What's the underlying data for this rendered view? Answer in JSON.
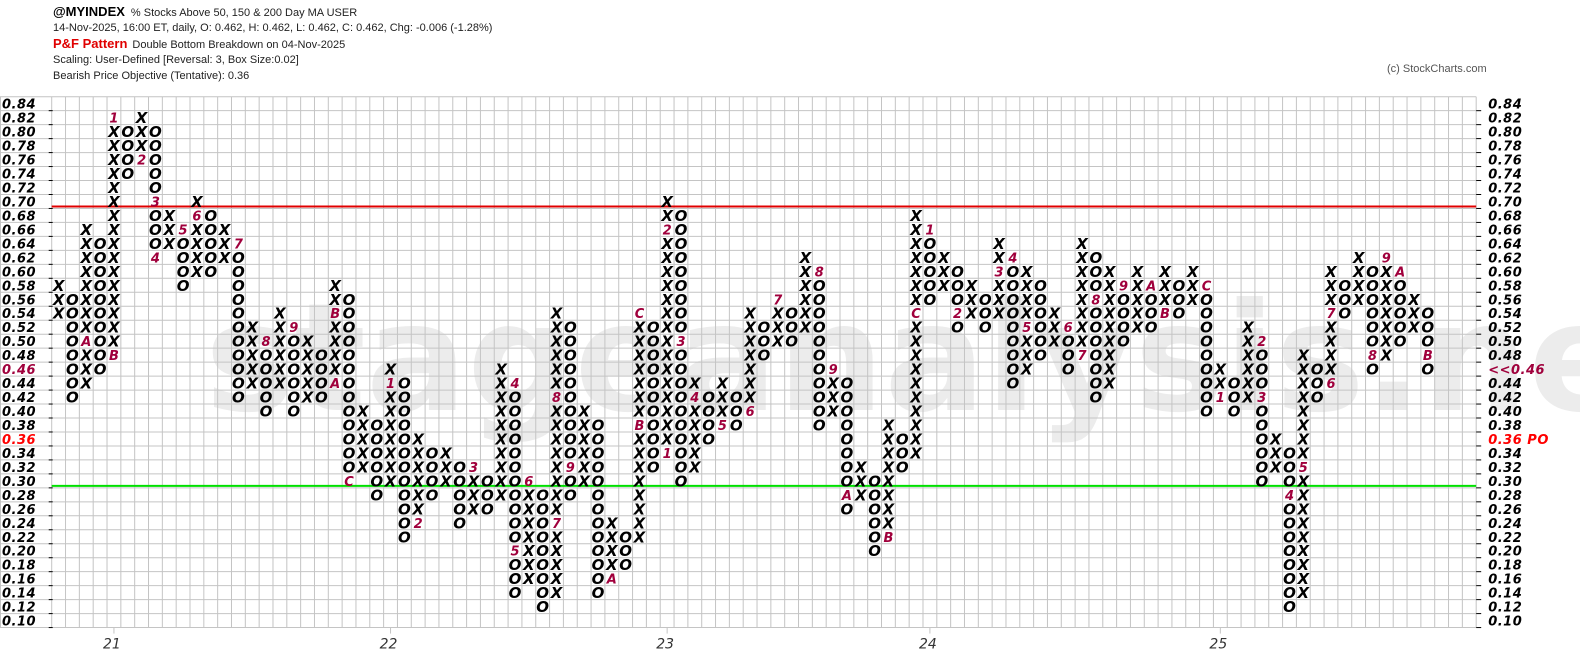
{
  "header": {
    "symbol": "@MYINDEX",
    "description": "% Stocks Above 50, 150 & 200 Day MA  USER",
    "quote_line": "14-Nov-2025, 16:00 ET, daily, O: 0.462, H: 0.462, L: 0.462, C: 0.462, Chg: -0.006 (-1.28%)",
    "pattern_label": "P&F Pattern",
    "pattern_text": "Double Bottom Breakdown on 04-Nov-2025",
    "scaling": "Scaling: User-Defined [Reversal: 3, Box Size:0.02]",
    "objective": "Bearish Price Objective (Tentative): 0.36"
  },
  "copyright": "(c) StockCharts.com",
  "watermark": "stageanalysis.net",
  "chart_data": {
    "type": "point_and_figure",
    "box_size": 0.02,
    "reversal": 3,
    "ylim": [
      0.1,
      0.84
    ],
    "grid": true,
    "y_ticks": [
      "0.84",
      "0.82",
      "0.80",
      "0.78",
      "0.76",
      "0.74",
      "0.72",
      "0.70",
      "0.68",
      "0.66",
      "0.64",
      "0.62",
      "0.60",
      "0.58",
      "0.56",
      "0.54",
      "0.52",
      "0.50",
      "0.48",
      "0.46",
      "0.44",
      "0.42",
      "0.40",
      "0.38",
      "0.36",
      "0.34",
      "0.32",
      "0.30",
      "0.28",
      "0.26",
      "0.24",
      "0.22",
      "0.20",
      "0.18",
      "0.16",
      "0.14",
      "0.12",
      "0.10"
    ],
    "last_price_label_left": "0.46",
    "last_price_label_right": "<<0.46",
    "last_price": 0.46,
    "objective_label_left": "0.36",
    "objective_label_right": "0.36 PO",
    "objective_price": 0.36,
    "resistance_line": 0.7,
    "support_line": 0.3,
    "colors": {
      "x": "#000000",
      "o": "#000000",
      "month": "#a0003c",
      "resistance": "#e00000",
      "support": "#00e000",
      "objective": "#ff0000",
      "last": "#a0003c",
      "grid": "#c4c4c4"
    },
    "columns": [
      {
        "t": "X",
        "lo": 0.54,
        "hi": 0.58
      },
      {
        "t": "O",
        "lo": 0.42,
        "hi": 0.56
      },
      {
        "t": "X",
        "lo": 0.44,
        "hi": 0.66,
        "m": {
          "0.50": "A"
        }
      },
      {
        "t": "O",
        "lo": 0.46,
        "hi": 0.64
      },
      {
        "t": "X",
        "lo": 0.48,
        "hi": 0.82,
        "m": {
          "0.48": "B",
          "0.82": "1"
        },
        "year": "21"
      },
      {
        "t": "O",
        "lo": 0.74,
        "hi": 0.8
      },
      {
        "t": "X",
        "lo": 0.76,
        "hi": 0.82,
        "m": {
          "0.76": "2"
        }
      },
      {
        "t": "O",
        "lo": 0.62,
        "hi": 0.8,
        "m": {
          "0.70": "3",
          "0.62": "4"
        }
      },
      {
        "t": "X",
        "lo": 0.64,
        "hi": 0.68
      },
      {
        "t": "O",
        "lo": 0.58,
        "hi": 0.66,
        "m": {
          "0.66": "5"
        }
      },
      {
        "t": "X",
        "lo": 0.6,
        "hi": 0.7,
        "m": {
          "0.68": "6"
        }
      },
      {
        "t": "O",
        "lo": 0.6,
        "hi": 0.68
      },
      {
        "t": "X",
        "lo": 0.62,
        "hi": 0.66
      },
      {
        "t": "O",
        "lo": 0.42,
        "hi": 0.64,
        "m": {
          "0.64": "7"
        }
      },
      {
        "t": "X",
        "lo": 0.44,
        "hi": 0.52
      },
      {
        "t": "O",
        "lo": 0.4,
        "hi": 0.5,
        "m": {
          "0.50": "8"
        }
      },
      {
        "t": "X",
        "lo": 0.44,
        "hi": 0.54
      },
      {
        "t": "O",
        "lo": 0.4,
        "hi": 0.52,
        "m": {
          "0.52": "9"
        }
      },
      {
        "t": "X",
        "lo": 0.42,
        "hi": 0.5
      },
      {
        "t": "O",
        "lo": 0.42,
        "hi": 0.48
      },
      {
        "t": "X",
        "lo": 0.44,
        "hi": 0.58,
        "m": {
          "0.54": "B",
          "0.44": "A"
        }
      },
      {
        "t": "O",
        "lo": 0.3,
        "hi": 0.56,
        "m": {
          "0.30": "C"
        }
      },
      {
        "t": "X",
        "lo": 0.32,
        "hi": 0.4
      },
      {
        "t": "O",
        "lo": 0.28,
        "hi": 0.38
      },
      {
        "t": "X",
        "lo": 0.3,
        "hi": 0.46,
        "m": {
          "0.44": "1"
        },
        "year": "22"
      },
      {
        "t": "O",
        "lo": 0.22,
        "hi": 0.44
      },
      {
        "t": "X",
        "lo": 0.24,
        "hi": 0.36,
        "m": {
          "0.24": "2"
        }
      },
      {
        "t": "O",
        "lo": 0.28,
        "hi": 0.34
      },
      {
        "t": "X",
        "lo": 0.3,
        "hi": 0.34
      },
      {
        "t": "O",
        "lo": 0.24,
        "hi": 0.32
      },
      {
        "t": "X",
        "lo": 0.26,
        "hi": 0.32,
        "m": {
          "0.32": "3"
        }
      },
      {
        "t": "O",
        "lo": 0.26,
        "hi": 0.3
      },
      {
        "t": "X",
        "lo": 0.28,
        "hi": 0.46
      },
      {
        "t": "O",
        "lo": 0.14,
        "hi": 0.44,
        "m": {
          "0.44": "4",
          "0.20": "5"
        }
      },
      {
        "t": "X",
        "lo": 0.16,
        "hi": 0.3,
        "m": {
          "0.30": "6"
        }
      },
      {
        "t": "O",
        "lo": 0.12,
        "hi": 0.28
      },
      {
        "t": "X",
        "lo": 0.14,
        "hi": 0.54,
        "m": {
          "0.24": "7",
          "0.42": "8"
        }
      },
      {
        "t": "O",
        "lo": 0.28,
        "hi": 0.52,
        "m": {
          "0.32": "9"
        }
      },
      {
        "t": "X",
        "lo": 0.3,
        "hi": 0.4
      },
      {
        "t": "O",
        "lo": 0.14,
        "hi": 0.38
      },
      {
        "t": "X",
        "lo": 0.16,
        "hi": 0.24,
        "m": {
          "0.16": "A"
        }
      },
      {
        "t": "O",
        "lo": 0.18,
        "hi": 0.22
      },
      {
        "t": "X",
        "lo": 0.22,
        "hi": 0.54,
        "m": {
          "0.38": "B",
          "0.54": "C"
        }
      },
      {
        "t": "O",
        "lo": 0.32,
        "hi": 0.52
      },
      {
        "t": "X",
        "lo": 0.34,
        "hi": 0.7,
        "m": {
          "0.34": "1",
          "0.66": "2"
        },
        "year": "23"
      },
      {
        "t": "O",
        "lo": 0.3,
        "hi": 0.68,
        "m": {
          "0.50": "3"
        }
      },
      {
        "t": "X",
        "lo": 0.32,
        "hi": 0.44,
        "m": {
          "0.42": "4"
        }
      },
      {
        "t": "O",
        "lo": 0.36,
        "hi": 0.42
      },
      {
        "t": "X",
        "lo": 0.38,
        "hi": 0.44,
        "m": {
          "0.38": "5"
        }
      },
      {
        "t": "O",
        "lo": 0.38,
        "hi": 0.42
      },
      {
        "t": "X",
        "lo": 0.4,
        "hi": 0.54,
        "m": {
          "0.40": "6"
        }
      },
      {
        "t": "O",
        "lo": 0.48,
        "hi": 0.52
      },
      {
        "t": "X",
        "lo": 0.5,
        "hi": 0.56,
        "m": {
          "0.56": "7"
        }
      },
      {
        "t": "O",
        "lo": 0.5,
        "hi": 0.54
      },
      {
        "t": "X",
        "lo": 0.52,
        "hi": 0.62
      },
      {
        "t": "O",
        "lo": 0.38,
        "hi": 0.6,
        "m": {
          "0.60": "8"
        }
      },
      {
        "t": "X",
        "lo": 0.4,
        "hi": 0.46,
        "m": {
          "0.46": "9"
        }
      },
      {
        "t": "O",
        "lo": 0.26,
        "hi": 0.44,
        "m": {
          "0.28": "A"
        }
      },
      {
        "t": "X",
        "lo": 0.28,
        "hi": 0.32
      },
      {
        "t": "O",
        "lo": 0.2,
        "hi": 0.3
      },
      {
        "t": "X",
        "lo": 0.22,
        "hi": 0.38,
        "m": {
          "0.22": "B"
        }
      },
      {
        "t": "O",
        "lo": 0.32,
        "hi": 0.36
      },
      {
        "t": "X",
        "lo": 0.34,
        "hi": 0.68,
        "m": {
          "0.54": "C"
        }
      },
      {
        "t": "O",
        "lo": 0.56,
        "hi": 0.66,
        "m": {
          "0.66": "1"
        },
        "year": "24"
      },
      {
        "t": "X",
        "lo": 0.58,
        "hi": 0.62
      },
      {
        "t": "O",
        "lo": 0.52,
        "hi": 0.6,
        "m": {
          "0.54": "2"
        }
      },
      {
        "t": "X",
        "lo": 0.54,
        "hi": 0.58
      },
      {
        "t": "O",
        "lo": 0.52,
        "hi": 0.56
      },
      {
        "t": "X",
        "lo": 0.54,
        "hi": 0.64,
        "m": {
          "0.60": "3"
        }
      },
      {
        "t": "O",
        "lo": 0.44,
        "hi": 0.62,
        "m": {
          "0.62": "4"
        }
      },
      {
        "t": "X",
        "lo": 0.46,
        "hi": 0.6,
        "m": {
          "0.52": "5"
        }
      },
      {
        "t": "O",
        "lo": 0.48,
        "hi": 0.58
      },
      {
        "t": "X",
        "lo": 0.5,
        "hi": 0.54
      },
      {
        "t": "O",
        "lo": 0.46,
        "hi": 0.52,
        "m": {
          "0.52": "6"
        }
      },
      {
        "t": "X",
        "lo": 0.48,
        "hi": 0.64,
        "m": {
          "0.48": "7"
        }
      },
      {
        "t": "O",
        "lo": 0.42,
        "hi": 0.62,
        "m": {
          "0.56": "8"
        }
      },
      {
        "t": "X",
        "lo": 0.44,
        "hi": 0.6
      },
      {
        "t": "O",
        "lo": 0.5,
        "hi": 0.58,
        "m": {
          "0.58": "9"
        }
      },
      {
        "t": "X",
        "lo": 0.52,
        "hi": 0.6
      },
      {
        "t": "O",
        "lo": 0.52,
        "hi": 0.58,
        "m": {
          "0.58": "A"
        }
      },
      {
        "t": "X",
        "lo": 0.54,
        "hi": 0.6,
        "m": {
          "0.54": "B"
        }
      },
      {
        "t": "O",
        "lo": 0.54,
        "hi": 0.58
      },
      {
        "t": "X",
        "lo": 0.56,
        "hi": 0.6
      },
      {
        "t": "O",
        "lo": 0.4,
        "hi": 0.58,
        "m": {
          "0.58": "C"
        }
      },
      {
        "t": "X",
        "lo": 0.42,
        "hi": 0.46,
        "m": {
          "0.42": "1"
        },
        "year": "25"
      },
      {
        "t": "O",
        "lo": 0.4,
        "hi": 0.44
      },
      {
        "t": "X",
        "lo": 0.42,
        "hi": 0.52
      },
      {
        "t": "O",
        "lo": 0.3,
        "hi": 0.5,
        "m": {
          "0.50": "2",
          "0.42": "3"
        }
      },
      {
        "t": "X",
        "lo": 0.32,
        "hi": 0.36
      },
      {
        "t": "O",
        "lo": 0.12,
        "hi": 0.34,
        "m": {
          "0.28": "4"
        }
      },
      {
        "t": "X",
        "lo": 0.14,
        "hi": 0.48,
        "m": {
          "0.32": "5"
        }
      },
      {
        "t": "O",
        "lo": 0.42,
        "hi": 0.46
      },
      {
        "t": "X",
        "lo": 0.44,
        "hi": 0.6,
        "m": {
          "0.44": "6",
          "0.54": "7"
        }
      },
      {
        "t": "O",
        "lo": 0.54,
        "hi": 0.58
      },
      {
        "t": "X",
        "lo": 0.56,
        "hi": 0.62
      },
      {
        "t": "O",
        "lo": 0.46,
        "hi": 0.6,
        "m": {
          "0.48": "8"
        }
      },
      {
        "t": "X",
        "lo": 0.48,
        "hi": 0.62,
        "m": {
          "0.62": "9"
        }
      },
      {
        "t": "O",
        "lo": 0.5,
        "hi": 0.6,
        "m": {
          "0.60": "A"
        }
      },
      {
        "t": "X",
        "lo": 0.52,
        "hi": 0.56
      },
      {
        "t": "O",
        "lo": 0.46,
        "hi": 0.54,
        "m": {
          "0.48": "B"
        }
      }
    ]
  }
}
